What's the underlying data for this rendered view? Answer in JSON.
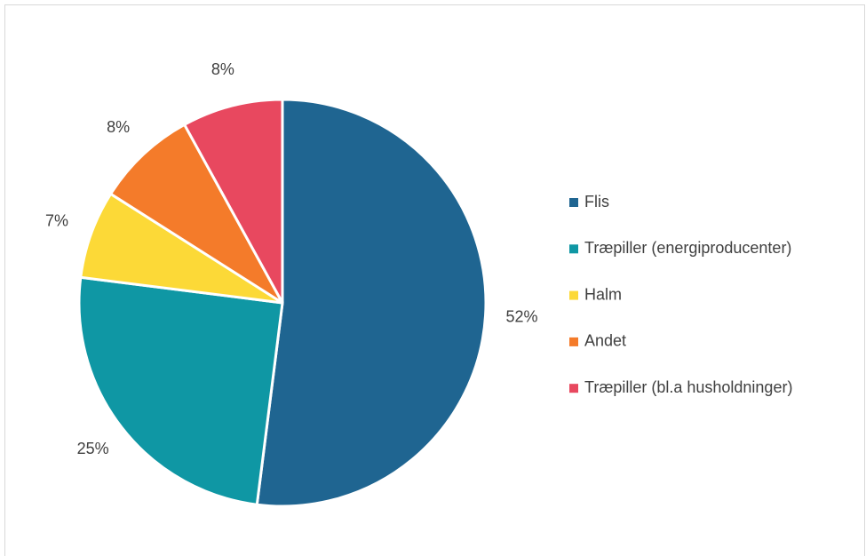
{
  "chart_data": {
    "type": "pie",
    "categories": [
      "Flis",
      "Træpiller (energiproducenter)",
      "Halm",
      "Andet",
      "Træpiller (bl.a husholdninger)"
    ],
    "values": [
      52,
      25,
      7,
      8,
      8
    ],
    "value_labels": [
      "52%",
      "25%",
      "7%",
      "8%",
      "8%"
    ],
    "colors": [
      "#1f6591",
      "#0f97a4",
      "#fcd937",
      "#f47b2a",
      "#e8485f"
    ],
    "legend": "right"
  }
}
